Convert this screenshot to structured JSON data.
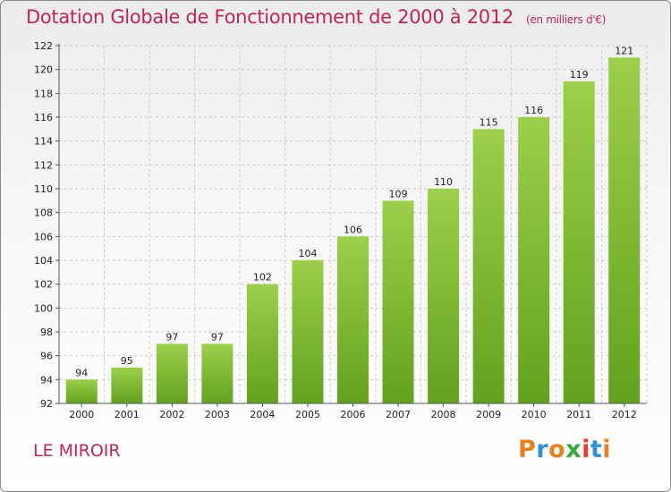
{
  "title": "Dotation Globale de Fonctionnement de 2000 à 2012",
  "subtitle": "(en milliers d'€)",
  "place_name": "LE MIROIR",
  "logo": {
    "text": "Proxiti",
    "colors": [
      "#e8821e",
      "#2f8fd8",
      "#e8821e",
      "#3aa63a",
      "#e83a2e",
      "#2f8fd8",
      "#e8821e"
    ]
  },
  "colors": {
    "title": "#c0245c",
    "bar_top": "#9ccf4a",
    "bar_bottom": "#62a21e",
    "grid": "#c9c9c9"
  },
  "chart_data": {
    "type": "bar",
    "categories": [
      "2000",
      "2001",
      "2002",
      "2003",
      "2004",
      "2005",
      "2006",
      "2007",
      "2008",
      "2009",
      "2010",
      "2011",
      "2012"
    ],
    "values": [
      94,
      95,
      97,
      97,
      102,
      104,
      106,
      109,
      110,
      115,
      116,
      119,
      121
    ],
    "ylim": [
      92,
      122
    ],
    "yticks": [
      92,
      94,
      96,
      98,
      100,
      102,
      104,
      106,
      108,
      110,
      112,
      114,
      116,
      118,
      120,
      122
    ],
    "grid": true,
    "data_labels": true
  }
}
